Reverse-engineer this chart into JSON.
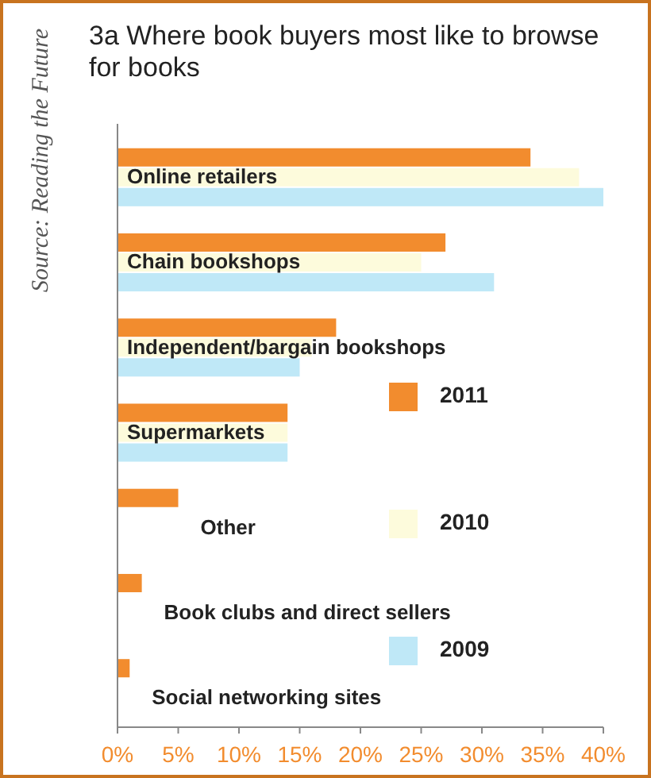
{
  "chart_data": {
    "type": "bar",
    "orientation": "horizontal",
    "title": "3a Where book buyers most like to browse for books",
    "annotations": [
      "Source: Reading the Future"
    ],
    "categories": [
      "Online retailers",
      "Chain bookshops",
      "Independent/bargain bookshops",
      "Supermarkets",
      "Other",
      "Book clubs and direct sellers",
      "Social networking sites"
    ],
    "series": [
      {
        "name": "2011",
        "color": "#f28c2e",
        "values": [
          34,
          27,
          18,
          14,
          5,
          2,
          1
        ]
      },
      {
        "name": "2010",
        "color": "#fdfbdc",
        "values": [
          38,
          25,
          16,
          14,
          null,
          null,
          null
        ]
      },
      {
        "name": "2009",
        "color": "#bfe8f7",
        "values": [
          40,
          31,
          15,
          14,
          null,
          null,
          null
        ]
      }
    ],
    "xlim": [
      0,
      40
    ],
    "xticks": [
      {
        "value": 0,
        "label": "0%"
      },
      {
        "value": 5,
        "label": "5%"
      },
      {
        "value": 10,
        "label": "10%"
      },
      {
        "value": 15,
        "label": "15%"
      },
      {
        "value": 20,
        "label": "20%"
      },
      {
        "value": 25,
        "label": "25%"
      },
      {
        "value": 30,
        "label": "30%"
      },
      {
        "value": 35,
        "label": "35%"
      },
      {
        "value": 40,
        "label": "40%"
      }
    ],
    "grid": false,
    "legend": "right"
  }
}
